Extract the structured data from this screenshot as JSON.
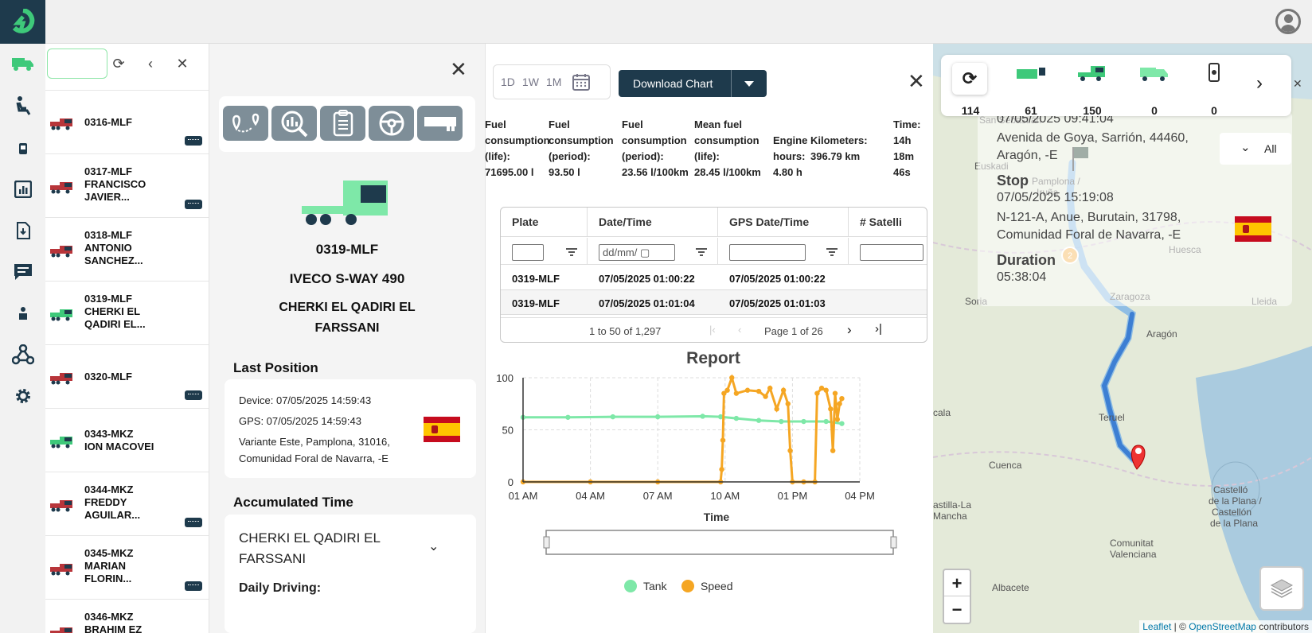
{
  "vehicles": [
    {
      "line1": "0316-MLF",
      "line2": "",
      "line3": "",
      "color": "#b8353a",
      "badge": true
    },
    {
      "line1": "0317-MLF",
      "line2": "FRANCISCO",
      "line3": "JAVIER...",
      "color": "#b8353a",
      "badge": true
    },
    {
      "line1": "0318-MLF",
      "line2": "ANTONIO",
      "line3": "SANCHEZ...",
      "color": "#b8353a",
      "badge": false
    },
    {
      "line1": "0319-MLF",
      "line2": "CHERKI EL",
      "line3": "QADIRI EL...",
      "color": "#3ec97a",
      "badge": false
    },
    {
      "line1": "0320-MLF",
      "line2": "",
      "line3": "",
      "color": "#b8353a",
      "badge": true
    },
    {
      "line1": "0343-MKZ",
      "line2": "ION MACOVEI",
      "line3": "",
      "color": "#3ec97a",
      "badge": false
    },
    {
      "line1": "0344-MKZ",
      "line2": "FREDDY",
      "line3": "AGUILAR...",
      "color": "#b8353a",
      "badge": true
    },
    {
      "line1": "0345-MKZ",
      "line2": "MARIAN",
      "line3": "FLORIN...",
      "color": "#b8353a",
      "badge": true
    },
    {
      "line1": "0346-MKZ",
      "line2": "BRAHIM EZ",
      "line3": "",
      "color": "#b8353a",
      "badge": false
    }
  ],
  "detail": {
    "plate": "0319-MLF",
    "model": "IVECO S-WAY 490",
    "driver_line1": "CHERKI EL QADIRI EL",
    "driver_line2": "FARSSANI",
    "last_position_title": "Last Position",
    "device": "Device: 07/05/2025 14:59:43",
    "gps": "GPS: 07/05/2025 14:59:43",
    "address1": "Variante Este, Pamplona, 31016,",
    "address2": "Comunidad Foral de Navarra, -E",
    "accumulated_title": "Accumulated Time",
    "acc_driver1": "CHERKI EL QADIRI EL",
    "acc_driver2": "FARSSANI",
    "daily_driving": "Daily Driving:"
  },
  "period": {
    "d": "1D",
    "w": "1W",
    "m": "1M"
  },
  "download_label": "Download Chart",
  "stats": [
    {
      "l1": "Fuel",
      "l2": "consumption",
      "l3": "(life):",
      "l4": "71695.00 l"
    },
    {
      "l1": "Fuel",
      "l2": "consumption",
      "l3": "(period):",
      "l4": "93.50 l"
    },
    {
      "l1": "Fuel",
      "l2": "consumption",
      "l3": "(period):",
      "l4": "23.56 l/100km"
    },
    {
      "l1": "Mean fuel",
      "l2": "consumption",
      "l3": "(life):",
      "l4": "28.45 l/100km"
    },
    {
      "l1": "",
      "l2": "Engine",
      "l3": "hours:",
      "l4": "4.80 h"
    },
    {
      "l1": "",
      "l2": "Kilometers:",
      "l3": "396.79 km",
      "l4": ""
    },
    {
      "l1": "Time:",
      "l2": "14h",
      "l3": "18m",
      "l4": "46s"
    }
  ],
  "grid": {
    "columns": [
      "Plate",
      "Date/Time",
      "GPS Date/Time",
      "# Satelli"
    ],
    "date_placeholder": "dd/mm/",
    "rows": [
      [
        "0319-MLF",
        "07/05/2025 01:00:22",
        "07/05/2025 01:00:22"
      ],
      [
        "0319-MLF",
        "07/05/2025 01:01:04",
        "07/05/2025 01:01:03"
      ]
    ],
    "range": "1 to 50 of 1,297",
    "page": "Page 1 of 26"
  },
  "chart_data": {
    "type": "line",
    "title": "Report",
    "xlabel": "Time",
    "ylabel": "",
    "x_ticks": [
      "01 AM",
      "04 AM",
      "07 AM",
      "10 AM",
      "01 PM",
      "04 PM"
    ],
    "y_ticks": [
      0,
      50,
      100
    ],
    "ylim": [
      0,
      100
    ],
    "x_range_hours": [
      1,
      16
    ],
    "series": [
      {
        "name": "Tank",
        "color": "#7ee8a8",
        "points": [
          [
            1,
            62
          ],
          [
            3,
            62
          ],
          [
            5,
            62.5
          ],
          [
            7,
            62.5
          ],
          [
            9,
            63
          ],
          [
            9.8,
            62.5
          ],
          [
            10.5,
            61
          ],
          [
            11.5,
            59
          ],
          [
            12.5,
            58
          ],
          [
            13.5,
            58
          ],
          [
            14.5,
            58
          ],
          [
            15.2,
            56
          ]
        ]
      },
      {
        "name": "Speed",
        "color": "#f5a623",
        "points": [
          [
            1,
            0
          ],
          [
            4,
            0
          ],
          [
            7,
            0
          ],
          [
            9.8,
            0
          ],
          [
            9.85,
            12
          ],
          [
            9.9,
            40
          ],
          [
            9.95,
            85
          ],
          [
            10.1,
            88
          ],
          [
            10.3,
            100
          ],
          [
            10.5,
            85
          ],
          [
            11,
            88
          ],
          [
            11.5,
            87
          ],
          [
            11.8,
            82
          ],
          [
            12,
            90
          ],
          [
            12.3,
            70
          ],
          [
            12.6,
            88
          ],
          [
            12.8,
            75
          ],
          [
            12.9,
            30
          ],
          [
            13.0,
            0
          ],
          [
            13.5,
            0
          ],
          [
            14.0,
            0
          ],
          [
            14.1,
            85
          ],
          [
            14.3,
            90
          ],
          [
            14.5,
            88
          ],
          [
            14.7,
            70
          ],
          [
            14.8,
            30
          ],
          [
            14.9,
            85
          ],
          [
            15.0,
            60
          ],
          [
            15.1,
            75
          ],
          [
            15.2,
            80
          ]
        ]
      }
    ]
  },
  "map": {
    "toolbar_counts": [
      "114",
      "61",
      "150",
      "0",
      "0"
    ],
    "popup": {
      "start_time": "07/05/2025 09:41:04",
      "start_addr1": "Avenida de Goya, Sarrión, 44460,",
      "start_addr2": "Aragón, -E",
      "stop_label": "Stop",
      "stop_time": "07/05/2025 15:19:08",
      "stop_addr1": "N-121-A, Anue, Burutain, 31798,",
      "stop_addr2": "Comunidad Foral de Navarra, -E",
      "duration_label": "Duration",
      "duration": "05:38:04"
    },
    "all_label": "All",
    "labels": [
      {
        "t": "San Sebastián",
        "x": 58,
        "y": 100
      },
      {
        "t": "Euskadi",
        "x": 52,
        "y": 158
      },
      {
        "t": "Pamplona /",
        "x": 124,
        "y": 177
      },
      {
        "t": "Iruña",
        "x": 130,
        "y": 191
      },
      {
        "t": "Huesca",
        "x": 296,
        "y": 263
      },
      {
        "t": "Soria",
        "x": 40,
        "y": 328
      },
      {
        "t": "Zaragoza",
        "x": 222,
        "y": 322
      },
      {
        "t": "Lleida",
        "x": 400,
        "y": 328
      },
      {
        "t": "Aragón",
        "x": 268,
        "y": 369
      },
      {
        "t": "cala",
        "x": 0,
        "y": 468
      },
      {
        "t": "Teruel",
        "x": 208,
        "y": 474
      },
      {
        "t": "Cuenca",
        "x": 70,
        "y": 534
      },
      {
        "t": "Castelló",
        "x": 352,
        "y": 565
      },
      {
        "t": "de la Plana /",
        "x": 346,
        "y": 579
      },
      {
        "t": "Castellón",
        "x": 350,
        "y": 593
      },
      {
        "t": "de la Plana",
        "x": 348,
        "y": 607
      },
      {
        "t": "astilla-La",
        "x": 0,
        "y": 584
      },
      {
        "t": "Mancha",
        "x": 0,
        "y": 598
      },
      {
        "t": "Comunitat",
        "x": 222,
        "y": 632
      },
      {
        "t": "Valenciana",
        "x": 222,
        "y": 646
      },
      {
        "t": "Albacete",
        "x": 74,
        "y": 688
      }
    ],
    "attribution": {
      "leaflet": "Leaflet",
      "sep": " | © ",
      "osm": "OpenStreetMap",
      "rest": " contributors"
    }
  }
}
